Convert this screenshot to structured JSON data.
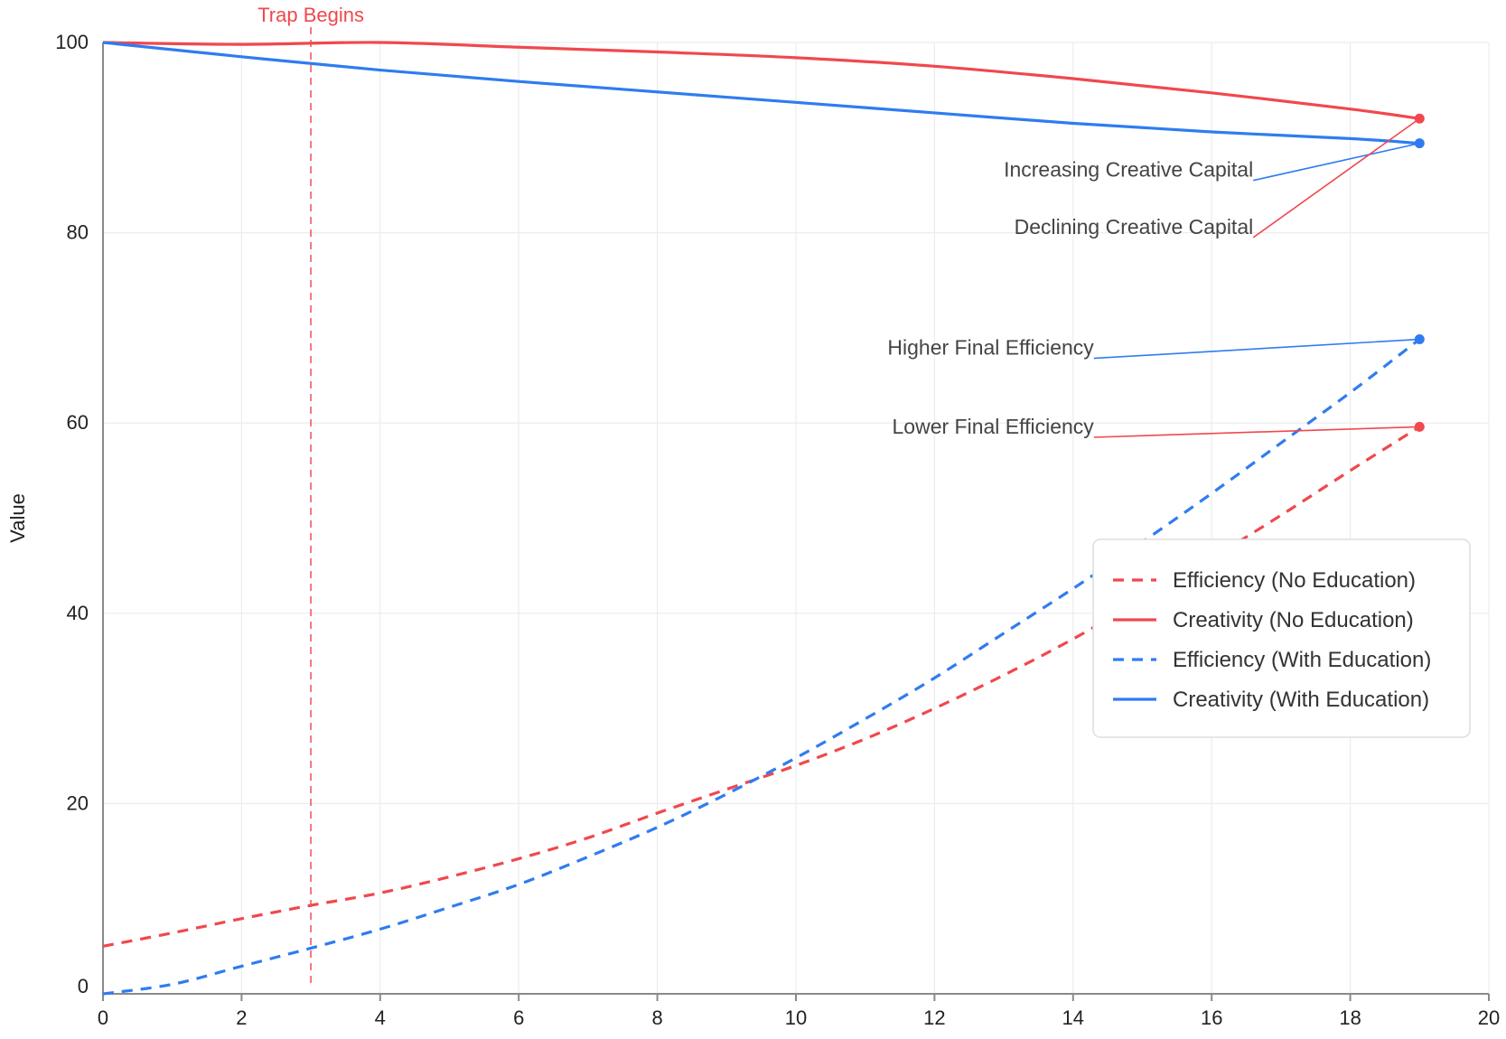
{
  "chart_data": {
    "type": "line",
    "title": "",
    "xlabel": "",
    "ylabel": "Value",
    "xlim": [
      0,
      20
    ],
    "ylim": [
      0,
      100
    ],
    "xticks": [
      0,
      2,
      4,
      6,
      8,
      10,
      12,
      14,
      16,
      18,
      20
    ],
    "yticks": [
      0,
      20,
      40,
      60,
      80,
      100
    ],
    "grid": true,
    "legend_position": "center-right",
    "colors": {
      "no_education": "#f0484d",
      "with_education": "#2f7cf0"
    },
    "series": [
      {
        "name": "Efficiency (No Education)",
        "style": "dashed",
        "color": "#f0484d",
        "x": [
          0,
          1,
          2,
          3,
          4,
          5,
          6,
          7,
          8,
          9,
          10,
          11,
          12,
          13,
          14,
          15,
          16,
          17,
          18,
          19
        ],
        "y": [
          5,
          6.4,
          7.9,
          9.3,
          10.6,
          12.3,
          14.2,
          16.4,
          19,
          21.5,
          24,
          26.8,
          30,
          33.5,
          37.3,
          41.5,
          45.8,
          50.3,
          55,
          59.6
        ]
      },
      {
        "name": "Creativity (No Education)",
        "style": "solid",
        "color": "#f0484d",
        "x": [
          0,
          2,
          4,
          6,
          8,
          10,
          12,
          14,
          16,
          18,
          19
        ],
        "y": [
          100,
          99.8,
          100,
          99.5,
          99,
          98.4,
          97.5,
          96.2,
          94.7,
          93,
          92
        ]
      },
      {
        "name": "Efficiency (With Education)",
        "style": "dashed",
        "color": "#2f7cf0",
        "x": [
          0,
          1,
          2,
          3,
          4,
          5,
          6,
          7,
          8,
          9,
          10,
          11,
          12,
          13,
          14,
          15,
          16,
          17,
          18,
          19
        ],
        "y": [
          0,
          1,
          2.9,
          4.8,
          6.8,
          9.1,
          11.5,
          14.4,
          17.5,
          21,
          24.8,
          28.9,
          33.2,
          37.9,
          42.6,
          47.5,
          52.6,
          57.9,
          63.2,
          68.8
        ]
      },
      {
        "name": "Creativity (With Education)",
        "style": "solid",
        "color": "#2f7cf0",
        "x": [
          0,
          2,
          4,
          6,
          8,
          10,
          12,
          14,
          16,
          18,
          19
        ],
        "y": [
          100,
          98.5,
          97.1,
          95.9,
          94.8,
          93.7,
          92.6,
          91.5,
          90.6,
          89.9,
          89.4
        ]
      }
    ],
    "vertical_marker": {
      "x": 3,
      "label": "Trap Begins",
      "color": "#f0484d"
    },
    "annotations": [
      {
        "text": "Increasing Creative Capital",
        "point": {
          "x": 19,
          "y": 89.4
        },
        "text_anchor": {
          "x": 16.6,
          "y": 85.5
        },
        "color": "#2f7cf0"
      },
      {
        "text": "Declining Creative Capital",
        "point": {
          "x": 19,
          "y": 92
        },
        "text_anchor": {
          "x": 16.6,
          "y": 79.5
        },
        "color": "#f0484d"
      },
      {
        "text": "Higher Final Efficiency",
        "point": {
          "x": 19,
          "y": 68.8
        },
        "text_anchor": {
          "x": 14.3,
          "y": 66.8
        },
        "color": "#2f7cf0"
      },
      {
        "text": "Lower Final Efficiency",
        "point": {
          "x": 19,
          "y": 59.6
        },
        "text_anchor": {
          "x": 14.3,
          "y": 58.5
        },
        "color": "#f0484d"
      }
    ]
  }
}
